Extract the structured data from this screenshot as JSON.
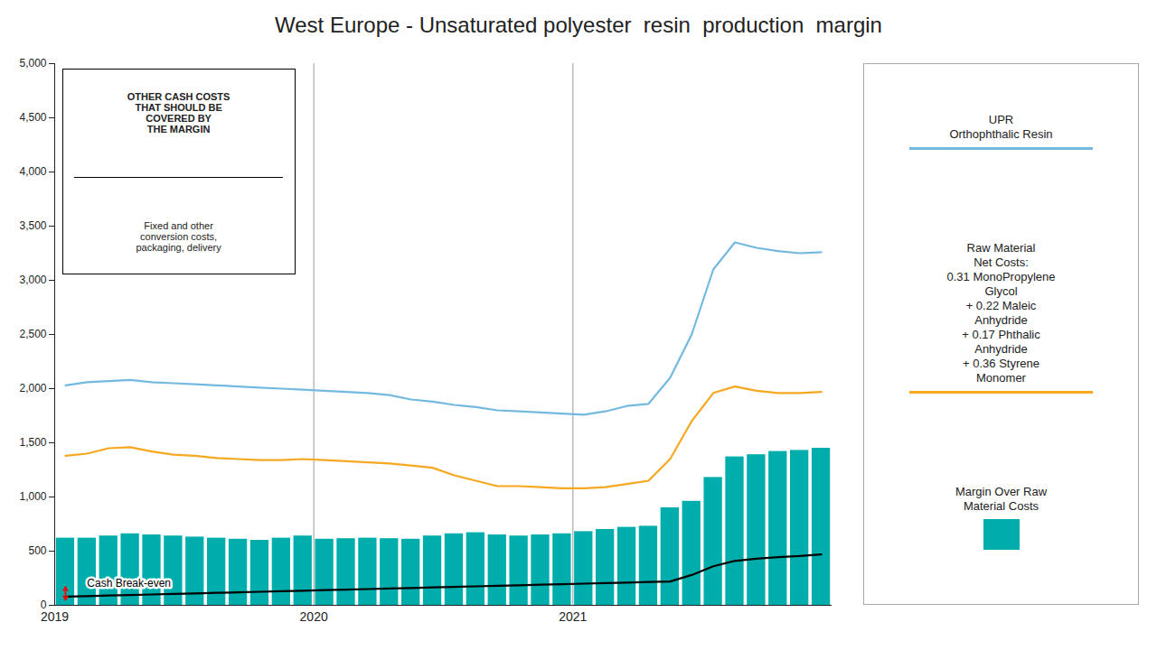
{
  "chart_data": {
    "type": "bar",
    "title": "West Europe - Unsaturated polyester  resin  production  margin",
    "categories": [
      "2019",
      null,
      null,
      null,
      null,
      null,
      null,
      null,
      null,
      null,
      null,
      null,
      "2020",
      null,
      null,
      null,
      null,
      null,
      null,
      null,
      null,
      null,
      null,
      null,
      "2021",
      null,
      null,
      null,
      null,
      null,
      null,
      null,
      null,
      null,
      null,
      null
    ],
    "series": [
      {
        "name": "Margin Over Raw\nMaterial Costs",
        "type": "bar",
        "color": "#00ADAD",
        "values": [
          620,
          620,
          640,
          660,
          650,
          640,
          630,
          620,
          610,
          600,
          620,
          640,
          610,
          615,
          620,
          615,
          610,
          640,
          660,
          670,
          650,
          640,
          650,
          660,
          680,
          700,
          720,
          730,
          900,
          960,
          1180,
          1370,
          1390,
          1420,
          1430,
          1450
        ]
      },
      {
        "name": "UPR\nOrthophthalic Resin",
        "type": "line",
        "color": "#74B9E0",
        "values": [
          2030,
          2060,
          2070,
          2080,
          2060,
          2050,
          2040,
          2030,
          2020,
          2010,
          2000,
          1990,
          1980,
          1970,
          1960,
          1940,
          1900,
          1880,
          1850,
          1830,
          1800,
          1790,
          1780,
          1770,
          1760,
          1790,
          1840,
          1860,
          2100,
          2500,
          3100,
          3350,
          3300,
          3270,
          3250,
          3260
        ]
      },
      {
        "name": "Raw Material\nNet Costs:\n0.31 MonoPropylene\nGlycol\n+ 0.22 Maleic\nAnhydride\n+ 0.17 Phthalic\nAnhydride\n+ 0.36 Styrene\nMonomer",
        "type": "line",
        "color": "#F5A820",
        "values": [
          1380,
          1400,
          1450,
          1460,
          1420,
          1390,
          1380,
          1360,
          1350,
          1340,
          1340,
          1350,
          1340,
          1330,
          1320,
          1310,
          1290,
          1270,
          1200,
          1150,
          1100,
          1100,
          1090,
          1080,
          1080,
          1090,
          1120,
          1150,
          1350,
          1700,
          1960,
          2020,
          1980,
          1960,
          1960,
          1970
        ]
      },
      {
        "type": "line",
        "color": "#000000",
        "values": [
          80,
          85,
          90,
          95,
          100,
          105,
          110,
          115,
          120,
          125,
          130,
          135,
          140,
          145,
          150,
          155,
          160,
          165,
          170,
          175,
          180,
          185,
          190,
          195,
          200,
          205,
          210,
          215,
          220,
          280,
          360,
          410,
          430,
          445,
          455,
          470
        ]
      }
    ],
    "ylim": [
      0,
      5000
    ],
    "yticks": [
      0,
      500,
      {
        "value": 1000,
        "label": "1,000"
      },
      {
        "value": 1500,
        "label": "1,500"
      },
      {
        "value": 2000,
        "label": "2,000"
      },
      {
        "value": 2500,
        "label": "2,500"
      },
      {
        "value": 3000,
        "label": "3,000"
      },
      {
        "value": 3500,
        "label": "3,500"
      },
      {
        "value": 4000,
        "label": "4,000"
      },
      {
        "value": 4500,
        "label": "4,500"
      },
      {
        "value": 5000,
        "label": "5,000"
      }
    ],
    "grid": false,
    "legend": "right",
    "annotations": [
      {
        "title": "OTHER CASH COSTS\nTHAT SHOULD BE\nCOVERED BY\nTHE MARGIN",
        "text": "Fixed and other\nconversion costs,\npackaging, delivery"
      },
      {
        "text": "Cash Break-even",
        "y": [
          50,
          170
        ],
        "color": "red"
      }
    ]
  }
}
